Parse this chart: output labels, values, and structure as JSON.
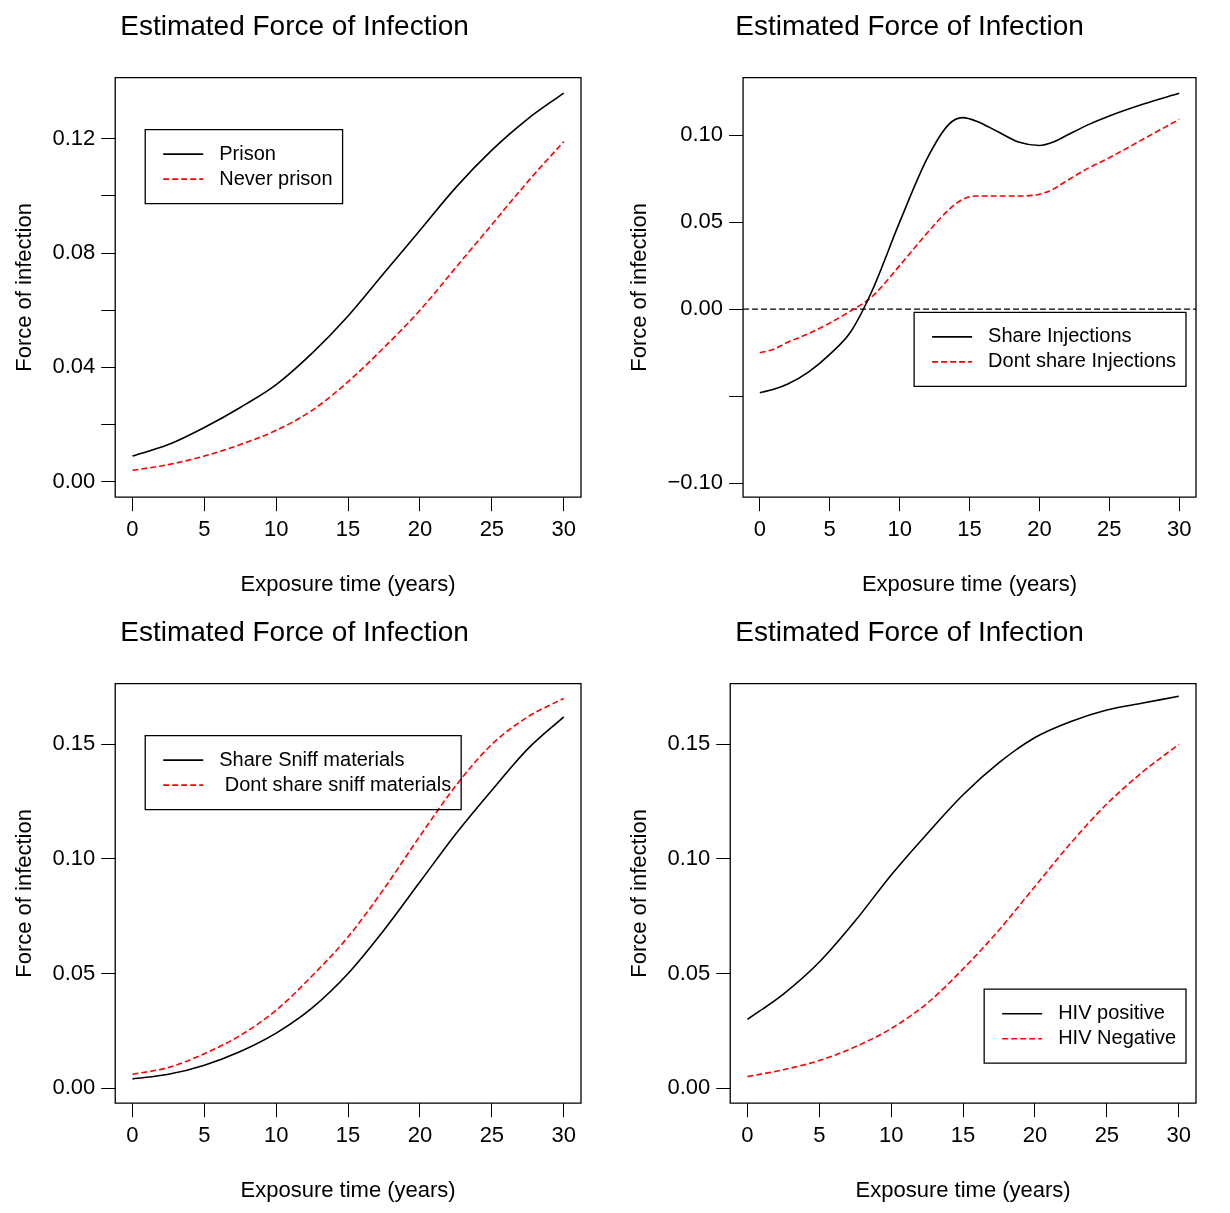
{
  "chart_data": [
    {
      "type": "line",
      "title": "Estimated Force of Infection",
      "xlabel": "Exposure time (years)",
      "ylabel": "Force of infection",
      "xlim": [
        -1.2,
        31.2
      ],
      "ylim": [
        -0.0054,
        0.1414
      ],
      "xticks": [
        0,
        5,
        10,
        15,
        20,
        25,
        30
      ],
      "yticks": [
        {
          "value": 0,
          "label": "0.00"
        },
        {
          "value": 0.02,
          "label": null
        },
        {
          "value": 0.04,
          "label": "0.04"
        },
        {
          "value": 0.06,
          "label": null
        },
        {
          "value": 0.08,
          "label": "0.08"
        },
        {
          "value": 0.1,
          "label": null
        },
        {
          "value": 0.12,
          "label": "0.12"
        }
      ],
      "legend": "top left",
      "x": [
        0,
        2.5,
        5,
        7.5,
        10,
        12.5,
        15,
        17.5,
        20,
        22.5,
        25,
        27.5,
        30
      ],
      "series": [
        {
          "name": "Prison",
          "color": "#000000",
          "line_style": "solid",
          "values": [
            0.009,
            0.013,
            0.019,
            0.026,
            0.034,
            0.045,
            0.058,
            0.073,
            0.088,
            0.103,
            0.116,
            0.127,
            0.136
          ]
        },
        {
          "name": "Never prison",
          "color": "#ff0000",
          "line_style": "dashed",
          "values": [
            0.004,
            0.006,
            0.009,
            0.013,
            0.018,
            0.025,
            0.035,
            0.047,
            0.06,
            0.075,
            0.09,
            0.105,
            0.119
          ]
        }
      ]
    },
    {
      "type": "line",
      "title": "Estimated Force of Infection",
      "xlabel": "Exposure time (years)",
      "ylabel": "Force of infection",
      "xlim": [
        -1.2,
        31.2
      ],
      "ylim": [
        -0.108,
        0.133
      ],
      "xticks": [
        0,
        5,
        10,
        15,
        20,
        25,
        30
      ],
      "yticks": [
        {
          "value": -0.1,
          "label": "−0.10"
        },
        {
          "value": -0.05,
          "label": null
        },
        {
          "value": 0,
          "label": "0.00"
        },
        {
          "value": 0.05,
          "label": "0.05"
        },
        {
          "value": 0.1,
          "label": "0.10"
        }
      ],
      "legend": "right",
      "ref_lines": [
        {
          "axis": "y",
          "value": 0,
          "color": "#000000",
          "line_style": "dashed"
        }
      ],
      "x": [
        0,
        1,
        2,
        3.5,
        5,
        6.5,
        8,
        10,
        12,
        13.5,
        14.5,
        15.5,
        17,
        18.5,
        20,
        21,
        22,
        23.5,
        25,
        27.5,
        30
      ],
      "series": [
        {
          "name": "Share Injections",
          "color": "#000000",
          "line_style": "solid",
          "values": [
            -0.048,
            -0.046,
            -0.043,
            -0.036,
            -0.026,
            -0.013,
            0.01,
            0.05,
            0.087,
            0.106,
            0.11,
            0.108,
            0.102,
            0.096,
            0.094,
            0.096,
            0.1,
            0.106,
            0.111,
            0.118,
            0.124
          ]
        },
        {
          "name": "Dont share Injections",
          "color": "#ff0000",
          "line_style": "dashed",
          "values": [
            -0.025,
            -0.023,
            -0.019,
            -0.014,
            -0.008,
            -0.001,
            0.007,
            0.025,
            0.044,
            0.057,
            0.063,
            0.065,
            0.065,
            0.065,
            0.066,
            0.069,
            0.074,
            0.081,
            0.087,
            0.098,
            0.109
          ]
        }
      ]
    },
    {
      "type": "line",
      "title": "Estimated Force of Infection",
      "xlabel": "Exposure time (years)",
      "ylabel": "Force of infection",
      "xlim": [
        -1.2,
        31.2
      ],
      "ylim": [
        -0.0066,
        0.1765
      ],
      "xticks": [
        0,
        5,
        10,
        15,
        20,
        25,
        30
      ],
      "yticks": [
        {
          "value": 0,
          "label": "0.00"
        },
        {
          "value": 0.05,
          "label": "0.05"
        },
        {
          "value": 0.1,
          "label": "0.10"
        },
        {
          "value": 0.15,
          "label": "0.15"
        }
      ],
      "legend": "top left",
      "x": [
        0,
        2.5,
        5,
        7.5,
        10,
        12.5,
        15,
        17.5,
        20,
        22.5,
        25,
        27.5,
        30
      ],
      "series": [
        {
          "name": "Share Sniff materials",
          "color": "#000000",
          "line_style": "solid",
          "values": [
            0.004,
            0.006,
            0.01,
            0.016,
            0.024,
            0.035,
            0.05,
            0.069,
            0.09,
            0.111,
            0.13,
            0.148,
            0.162
          ]
        },
        {
          "name": " Dont share sniff materials",
          "color": "#ff0000",
          "line_style": "dashed",
          "values": [
            0.006,
            0.009,
            0.015,
            0.023,
            0.034,
            0.049,
            0.066,
            0.087,
            0.11,
            0.132,
            0.15,
            0.162,
            0.17
          ]
        }
      ]
    },
    {
      "type": "line",
      "title": "Estimated Force of Infection",
      "xlabel": "Exposure time (years)",
      "ylabel": "Force of infection",
      "xlim": [
        -1.2,
        31.2
      ],
      "ylim": [
        -0.0066,
        0.1765
      ],
      "xticks": [
        0,
        5,
        10,
        15,
        20,
        25,
        30
      ],
      "yticks": [
        {
          "value": 0,
          "label": "0.00"
        },
        {
          "value": 0.05,
          "label": "0.05"
        },
        {
          "value": 0.1,
          "label": "0.10"
        },
        {
          "value": 0.15,
          "label": "0.15"
        }
      ],
      "legend": "bottom right",
      "x": [
        0,
        2.5,
        5,
        7.5,
        10,
        12.5,
        15,
        17.5,
        20,
        22.5,
        25,
        27.5,
        30
      ],
      "series": [
        {
          "name": "HIV positive",
          "color": "#000000",
          "line_style": "solid",
          "values": [
            0.03,
            0.041,
            0.055,
            0.073,
            0.093,
            0.111,
            0.128,
            0.142,
            0.153,
            0.16,
            0.165,
            0.168,
            0.171
          ]
        },
        {
          "name": "HIV Negative",
          "color": "#ff0000",
          "line_style": "dashed",
          "values": [
            0.005,
            0.008,
            0.012,
            0.018,
            0.026,
            0.037,
            0.052,
            0.069,
            0.088,
            0.107,
            0.124,
            0.138,
            0.15
          ]
        }
      ]
    }
  ]
}
